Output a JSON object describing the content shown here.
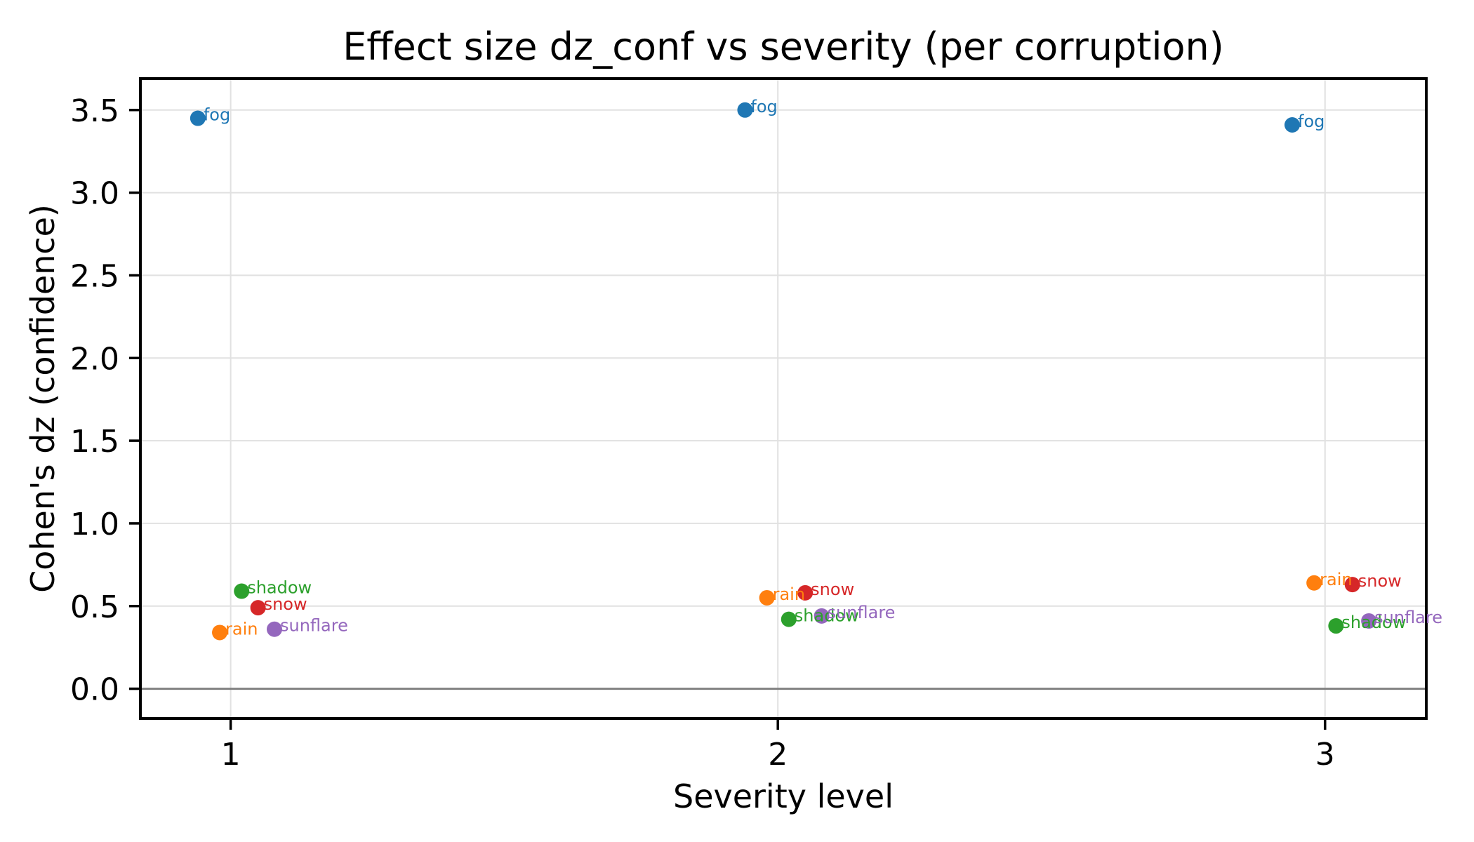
{
  "chart_data": {
    "type": "scatter",
    "title": "Effect size dz_conf vs severity (per corruption)",
    "xlabel": "Severity level",
    "ylabel": "Cohen's dz (confidence)",
    "xlim": [
      0.835,
      3.185
    ],
    "ylim": [
      -0.18,
      3.69
    ],
    "grid": true,
    "legend": "none (points annotated directly)",
    "background_color": "#ffffff",
    "gridline_color": "#e1e1e1",
    "spine_color": "#000000",
    "zero_line": {
      "y": 0.0,
      "color": "#808080"
    },
    "xticks": [
      {
        "value": 1,
        "label": "1"
      },
      {
        "value": 2,
        "label": "2"
      },
      {
        "value": 3,
        "label": "3"
      }
    ],
    "yticks": [
      {
        "value": 0.0,
        "label": "0.0"
      },
      {
        "value": 0.5,
        "label": "0.5"
      },
      {
        "value": 1.0,
        "label": "1.0"
      },
      {
        "value": 1.5,
        "label": "1.5"
      },
      {
        "value": 2.0,
        "label": "2.0"
      },
      {
        "value": 2.5,
        "label": "2.5"
      },
      {
        "value": 3.0,
        "label": "3.0"
      },
      {
        "value": 3.5,
        "label": "3.5"
      }
    ],
    "series": [
      {
        "name": "fog",
        "color": "#1f77b4",
        "points": [
          {
            "severity": 1,
            "x": 0.94,
            "y": 3.45
          },
          {
            "severity": 2,
            "x": 1.94,
            "y": 3.5
          },
          {
            "severity": 3,
            "x": 2.94,
            "y": 3.41
          }
        ]
      },
      {
        "name": "rain",
        "color": "#ff7f0e",
        "points": [
          {
            "severity": 1,
            "x": 0.98,
            "y": 0.34
          },
          {
            "severity": 2,
            "x": 1.98,
            "y": 0.55
          },
          {
            "severity": 3,
            "x": 2.98,
            "y": 0.64
          }
        ]
      },
      {
        "name": "shadow",
        "color": "#2ca02c",
        "points": [
          {
            "severity": 1,
            "x": 1.02,
            "y": 0.59
          },
          {
            "severity": 2,
            "x": 2.02,
            "y": 0.42
          },
          {
            "severity": 3,
            "x": 3.02,
            "y": 0.38
          }
        ]
      },
      {
        "name": "snow",
        "color": "#d62728",
        "points": [
          {
            "severity": 1,
            "x": 1.05,
            "y": 0.49
          },
          {
            "severity": 2,
            "x": 2.05,
            "y": 0.58
          },
          {
            "severity": 3,
            "x": 3.05,
            "y": 0.63
          }
        ]
      },
      {
        "name": "sunflare",
        "color": "#9467bd",
        "points": [
          {
            "severity": 1,
            "x": 1.08,
            "y": 0.36
          },
          {
            "severity": 2,
            "x": 2.08,
            "y": 0.44
          },
          {
            "severity": 3,
            "x": 3.08,
            "y": 0.41
          }
        ]
      }
    ]
  }
}
